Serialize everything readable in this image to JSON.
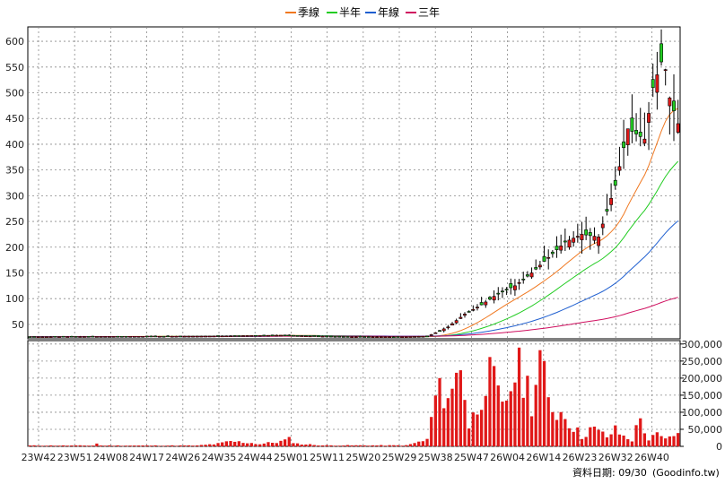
{
  "chart_data": {
    "type": "candlestick",
    "legend_placement": "top-center",
    "legend": [
      {
        "name": "季線",
        "color": "#f07820"
      },
      {
        "name": "半年",
        "color": "#22cc22"
      },
      {
        "name": "年線",
        "color": "#1f5fd0"
      },
      {
        "name": "三年",
        "color": "#d01060"
      }
    ],
    "x_tick_labels": [
      "23W42",
      "23W51",
      "24W08",
      "24W17",
      "24W26",
      "24W35",
      "24W44",
      "25W01",
      "25W11",
      "25W20",
      "25W29",
      "25W38",
      "25W47",
      "26W04",
      "26W14",
      "26W23",
      "26W32",
      "26W40"
    ],
    "price_axis": {
      "ticks": [
        50,
        100,
        150,
        200,
        250,
        300,
        350,
        400,
        450,
        500,
        550,
        600
      ],
      "range": [
        22,
        628
      ]
    },
    "volume_axis": {
      "ticks": [
        "0",
        "50,000",
        "100,000",
        "150,000",
        "200,000",
        "250,000",
        "300,000"
      ],
      "tick_values": [
        0,
        50000,
        100000,
        150000,
        200000,
        250000,
        300000
      ],
      "range": [
        0,
        310000
      ]
    },
    "weeks_count": 156,
    "price_anchors": [
      [
        0,
        26
      ],
      [
        40,
        27
      ],
      [
        60,
        29
      ],
      [
        75,
        26
      ],
      [
        90,
        26
      ],
      [
        95,
        27
      ],
      [
        96,
        30
      ],
      [
        100,
        45
      ],
      [
        104,
        70
      ],
      [
        108,
        88
      ],
      [
        112,
        110
      ],
      [
        116,
        125
      ],
      [
        120,
        150
      ],
      [
        124,
        180
      ],
      [
        128,
        210
      ],
      [
        132,
        225
      ],
      [
        136,
        220
      ],
      [
        140,
        320
      ],
      [
        143,
        430
      ],
      [
        145,
        420
      ],
      [
        147,
        410
      ],
      [
        149,
        510
      ],
      [
        151,
        560
      ],
      [
        152,
        545
      ],
      [
        153,
        490
      ],
      [
        155,
        440
      ],
      [
        156,
        400
      ],
      [
        157,
        420
      ],
      [
        159,
        460
      ],
      [
        162,
        475
      ]
    ],
    "volume_anchors": [
      [
        0,
        2500
      ],
      [
        15,
        2500
      ],
      [
        16,
        9000
      ],
      [
        17,
        2500
      ],
      [
        40,
        2500
      ],
      [
        45,
        8000
      ],
      [
        48,
        15000
      ],
      [
        52,
        12000
      ],
      [
        55,
        7000
      ],
      [
        60,
        15000
      ],
      [
        62,
        22000
      ],
      [
        64,
        8000
      ],
      [
        70,
        3000
      ],
      [
        90,
        3000
      ],
      [
        95,
        20000
      ],
      [
        97,
        150000
      ],
      [
        99,
        170000
      ],
      [
        101,
        160000
      ],
      [
        103,
        280000
      ],
      [
        105,
        60000
      ],
      [
        107,
        120000
      ],
      [
        109,
        220000
      ],
      [
        111,
        190000
      ],
      [
        113,
        110000
      ],
      [
        116,
        230000
      ],
      [
        118,
        220000
      ],
      [
        120,
        145000
      ],
      [
        122,
        270000
      ],
      [
        124,
        130000
      ],
      [
        126,
        110000
      ],
      [
        128,
        100000
      ],
      [
        130,
        60000
      ],
      [
        132,
        30000
      ],
      [
        134,
        55000
      ],
      [
        136,
        45000
      ],
      [
        138,
        30000
      ],
      [
        140,
        50000
      ],
      [
        142,
        30000
      ],
      [
        144,
        20000
      ],
      [
        146,
        85000
      ],
      [
        148,
        20000
      ],
      [
        150,
        35000
      ],
      [
        152,
        20000
      ],
      [
        154,
        40000
      ],
      [
        156,
        30000
      ],
      [
        158,
        40000
      ],
      [
        160,
        30000
      ],
      [
        162,
        25000
      ]
    ]
  },
  "footer": {
    "label": "資料日期: 09/30",
    "source": "(Goodinfo.tw)"
  }
}
